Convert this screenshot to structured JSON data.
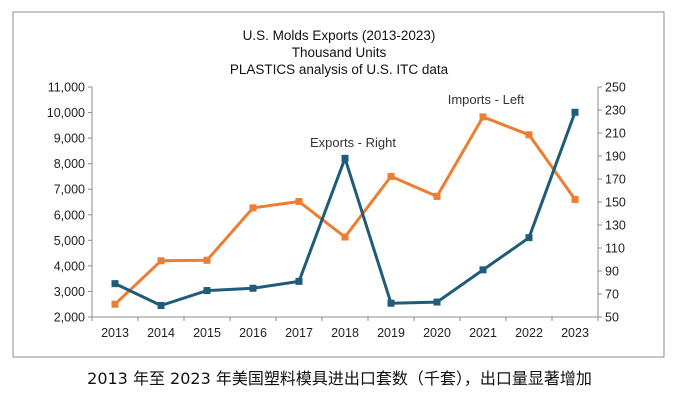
{
  "chart_data": {
    "type": "line",
    "title": [
      "U.S. Molds Exports (2013-2023)",
      "Thousand Units",
      "PLASTICS analysis  of U.S. ITC data"
    ],
    "categories": [
      "2013",
      "2014",
      "2015",
      "2016",
      "2017",
      "2018",
      "2019",
      "2020",
      "2021",
      "2022",
      "2023"
    ],
    "series": [
      {
        "name": "Imports - Left",
        "axis": "left",
        "color": "#ED7D31",
        "values": [
          2500,
          4200,
          4220,
          6270,
          6520,
          5130,
          7500,
          6720,
          9830,
          9130,
          6600
        ]
      },
      {
        "name": "Exports - Right",
        "axis": "right",
        "color": "#1F5C7A",
        "values": [
          79,
          60,
          73,
          75,
          81,
          188,
          62,
          63,
          91,
          119,
          228
        ]
      }
    ],
    "left_axis": {
      "ylim": [
        2000,
        11000
      ],
      "ticks": [
        "2,000",
        "3,000",
        "4,000",
        "5,000",
        "6,000",
        "7,000",
        "8,000",
        "9,000",
        "10,000",
        "11,000"
      ]
    },
    "right_axis": {
      "ylim": [
        50,
        250
      ],
      "ticks": [
        "50",
        "70",
        "90",
        "110",
        "130",
        "150",
        "170",
        "190",
        "210",
        "230",
        "250"
      ]
    },
    "grid": false
  },
  "caption": "2013 年至 2023 年美国塑料模具进出口套数（千套），出口量显著增加"
}
